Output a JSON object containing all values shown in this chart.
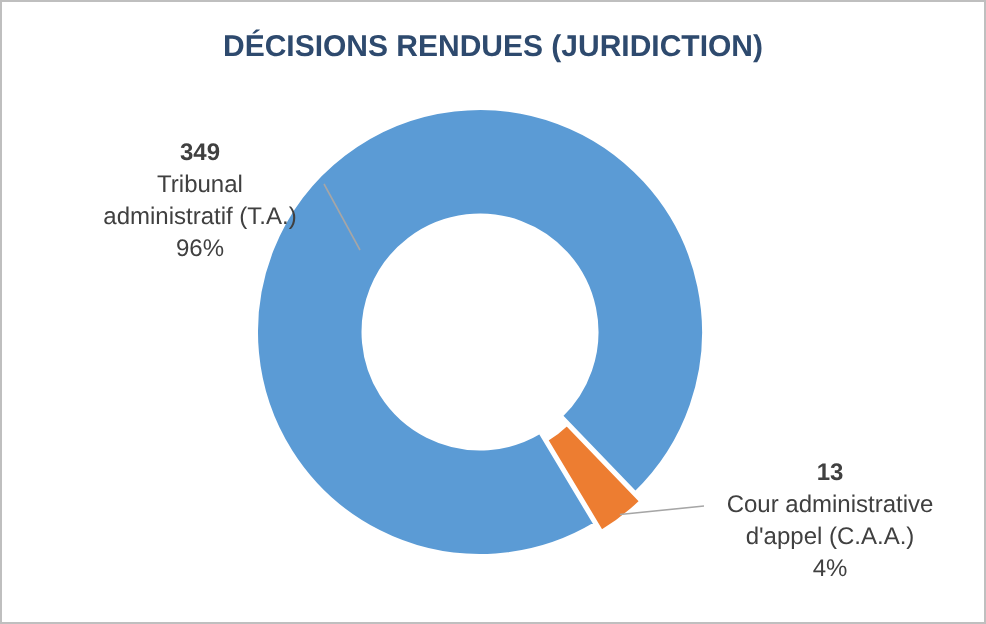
{
  "chart_data": {
    "type": "donut",
    "title": "DÉCISIONS RENDUES (JURIDICTION)",
    "categories": [
      "Tribunal administratif (T.A.)",
      "Cour administrative d'appel (C.A.A.)"
    ],
    "values": [
      349,
      13
    ],
    "colors": [
      "#5b9bd5",
      "#ed7d31"
    ],
    "data_labels": true,
    "annotations": [
      "96%",
      "4%"
    ]
  }
}
